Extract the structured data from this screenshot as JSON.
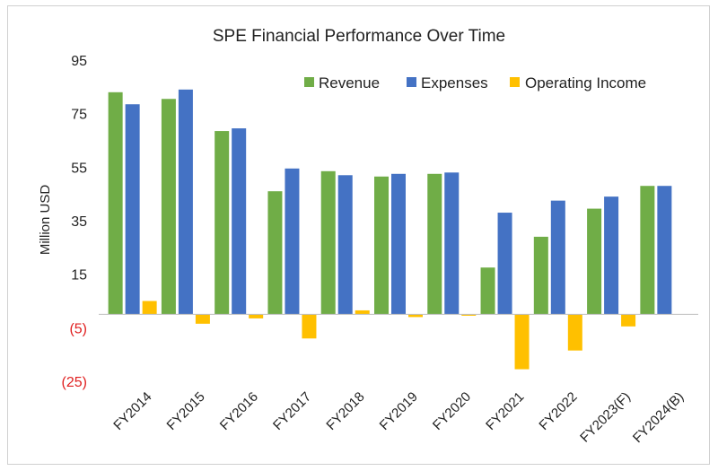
{
  "chart_data": {
    "type": "bar",
    "title": "SPE Financial Performance Over Time",
    "xlabel": "",
    "ylabel": "Million USD",
    "ylim": [
      -25,
      95
    ],
    "yticks": [
      95,
      75,
      55,
      35,
      15,
      -5,
      -25
    ],
    "ytick_labels": [
      "95",
      "75",
      "55",
      "35",
      "15",
      "(5)",
      "(25)"
    ],
    "negative_tick_color": "#e02020",
    "grid": false,
    "legend_position": "top-right",
    "categories": [
      "FY2014",
      "FY2015",
      "FY2016",
      "FY2017",
      "FY2018",
      "FY2019",
      "FY2020",
      "FY2021",
      "FY2022",
      "FY2023(F)",
      "FY2024(B)"
    ],
    "series": [
      {
        "name": "Revenue",
        "color": "#70ad47",
        "values": [
          83,
          80.5,
          68.5,
          46,
          53.5,
          51.5,
          52.5,
          17.5,
          29,
          39.5,
          48
        ]
      },
      {
        "name": "Expenses",
        "color": "#4472c4",
        "values": [
          78.5,
          84,
          69.5,
          54.5,
          52,
          52.5,
          53,
          38,
          42.5,
          44,
          48
        ]
      },
      {
        "name": "Operating Income",
        "color": "#ffc000",
        "values": [
          5,
          -3.5,
          -1.5,
          -9,
          1.5,
          -1,
          -0.5,
          -20.5,
          -13.5,
          -4.5,
          0
        ]
      }
    ]
  }
}
